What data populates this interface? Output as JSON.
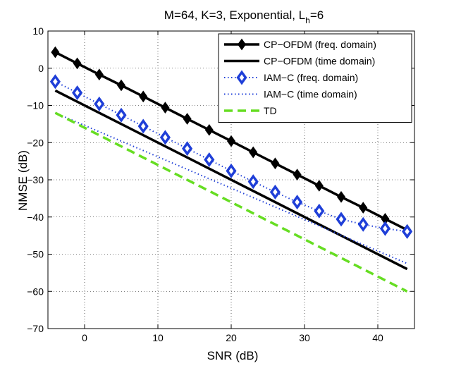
{
  "chart_data": {
    "type": "line",
    "title": "M=64, K=3, Exponential, L",
    "title_subscript": "h",
    "title_suffix": "=6",
    "xlabel": "SNR (dB)",
    "ylabel": "NMSE (dB)",
    "xlim": [
      -5,
      45
    ],
    "ylim": [
      -70,
      10
    ],
    "xticks": [
      0,
      10,
      20,
      30,
      40
    ],
    "yticks": [
      10,
      0,
      -10,
      -20,
      -30,
      -40,
      -50,
      -60,
      -70
    ],
    "grid": true,
    "legend_position": "top-right",
    "x": [
      -4,
      -1,
      2,
      5,
      8,
      11,
      14,
      17,
      20,
      23,
      26,
      29,
      32,
      35,
      38,
      41,
      44
    ],
    "series": [
      {
        "name": "CP−OFDM (freq. domain)",
        "color": "#000000",
        "style": "solid",
        "marker": "diamond",
        "values": [
          4.3,
          1.3,
          -1.7,
          -4.6,
          -7.6,
          -10.6,
          -13.6,
          -16.6,
          -19.6,
          -22.6,
          -25.6,
          -28.6,
          -31.6,
          -34.6,
          -37.5,
          -40.5,
          -43.5
        ]
      },
      {
        "name": "CP−OFDM (time domain)",
        "color": "#000000",
        "style": "solid",
        "marker": "none",
        "x": [
          -4,
          44
        ],
        "values": [
          -6.0,
          -54.0
        ]
      },
      {
        "name": "IAM−C (freq. domain)",
        "color": "#1f3fd8",
        "style": "dotted",
        "marker": "diamond",
        "values": [
          -3.6,
          -6.6,
          -9.6,
          -12.6,
          -15.6,
          -18.6,
          -21.6,
          -24.6,
          -27.6,
          -30.5,
          -33.3,
          -36.0,
          -38.4,
          -40.6,
          -42.0,
          -43.1,
          -43.9
        ]
      },
      {
        "name": "IAM−C (time domain)",
        "color": "#1f3fd8",
        "style": "dotted",
        "marker": "none",
        "x": [
          -4,
          44
        ],
        "values": [
          -12.0,
          -52.5
        ]
      },
      {
        "name": "TD",
        "color": "#66dd22",
        "style": "dashed",
        "marker": "none",
        "x": [
          -4,
          44
        ],
        "values": [
          -12.0,
          -60.0
        ]
      }
    ]
  }
}
